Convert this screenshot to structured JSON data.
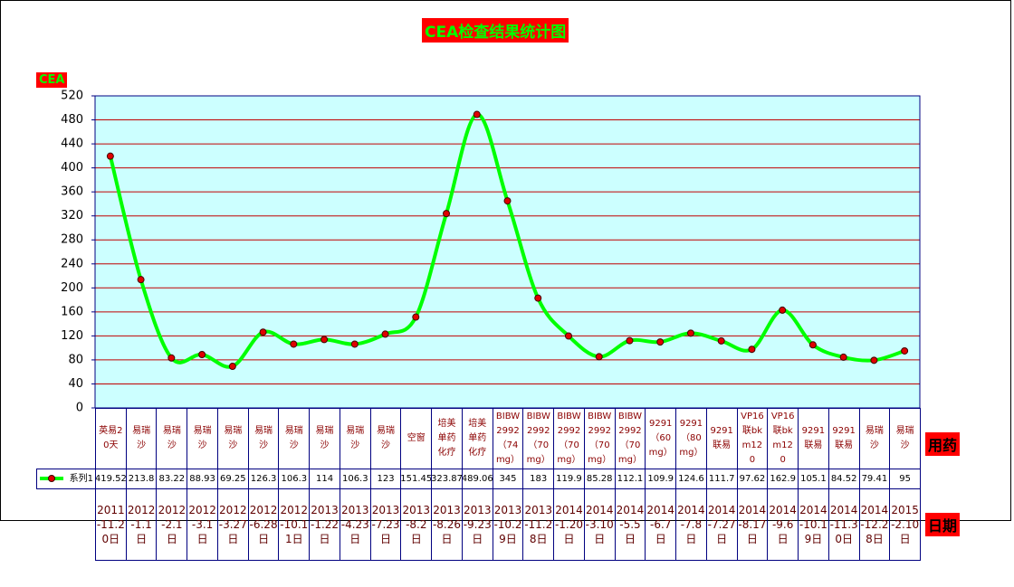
{
  "chart_data": {
    "type": "line",
    "title": "CEA检查结果统计图",
    "y_label": "CEA",
    "category_label": "用药",
    "dates_label": "日期",
    "categories": [
      "英易20天",
      "易瑞沙",
      "易瑞沙",
      "易瑞沙",
      "易瑞沙",
      "易瑞沙",
      "易瑞沙",
      "易瑞沙",
      "易瑞沙",
      "易瑞沙",
      "空窗",
      "培美单药化疗",
      "培美单药化疗",
      "BIBW2992（74mg）",
      "BIBW2992（70mg）",
      "BIBW2992（70mg）",
      "BIBW2992（70mg）",
      "BIBW2992（70mg）",
      "9291（60mg）",
      "9291（80mg）",
      "9291联易",
      "VP16联bkm120",
      "VP16联bkm120",
      "9291联易",
      "9291联易",
      "易瑞沙",
      "易瑞沙"
    ],
    "dates": [
      "2011-11.20日",
      "2012-1.1日",
      "2012-2.1日",
      "2012-3.1日",
      "2012-3.27日",
      "2012-6.28日",
      "2012-10.11日",
      "2013-1.22日",
      "2013-4.23日",
      "2013-7.23日",
      "2013-8.2日",
      "2013-8.26日",
      "2013-9.23日",
      "2013-10.29日",
      "2013-11.28日",
      "2014-1.20日",
      "2014-3.10日",
      "2014-5.5日",
      "2014-6.7日",
      "2014-7.8日",
      "2014-7.27日",
      "2014-8.17日",
      "2014-9.6日",
      "2014-10.19日",
      "2014-11.30日",
      "2014-12.28日",
      "2015-2.10日"
    ],
    "series": [
      {
        "name": "系列1",
        "color": "#00ff00",
        "marker_color": "#e00000",
        "values": [
          419.52,
          213.8,
          83.22,
          88.93,
          69.25,
          126.3,
          106.3,
          114,
          106.3,
          123,
          151.45,
          323.87,
          489.06,
          345,
          183,
          119.9,
          85.28,
          112.1,
          109.9,
          124.6,
          111.7,
          97.62,
          162.9,
          105.1,
          84.52,
          79.41,
          95
        ]
      }
    ],
    "ylim": [
      0,
      520
    ],
    "yticks": [
      0,
      40,
      80,
      120,
      160,
      200,
      240,
      280,
      320,
      360,
      400,
      440,
      480,
      520
    ],
    "grid": true,
    "grid_color": "#c00000",
    "plot_background": "#ccffff",
    "smooth": true
  }
}
